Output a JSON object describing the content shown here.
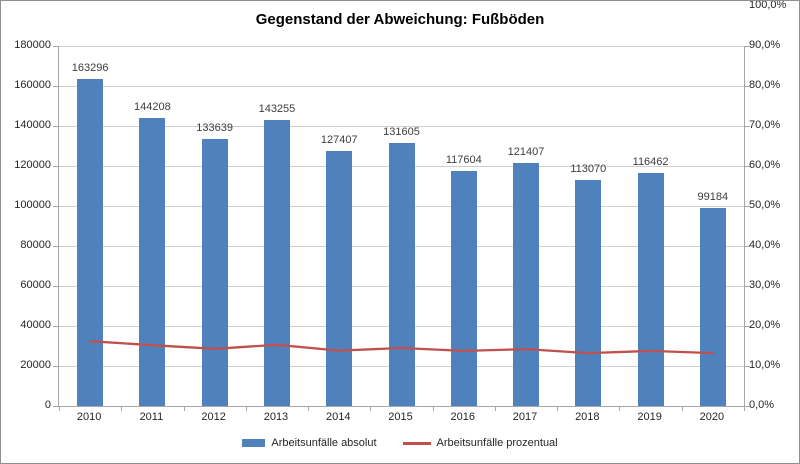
{
  "chart_data": {
    "type": "combo-bar-line",
    "title": "Gegenstand der Abweichung: Fußböden",
    "categories": [
      "2010",
      "2011",
      "2012",
      "2013",
      "2014",
      "2015",
      "2016",
      "2017",
      "2018",
      "2019",
      "2020"
    ],
    "series": [
      {
        "name": "Arbeitsunfälle absolut",
        "type": "bar",
        "axis": "left",
        "color": "#4F81BD",
        "values": [
          163296,
          144208,
          133639,
          143255,
          127407,
          131605,
          117604,
          121407,
          113070,
          116462,
          99184
        ]
      },
      {
        "name": "Arbeitsunfälle prozentual",
        "type": "line",
        "axis": "right",
        "color": "#C0504D",
        "values_percent": [
          18.0,
          16.9,
          15.9,
          17.0,
          15.4,
          16.1,
          15.3,
          15.8,
          14.7,
          15.3,
          14.7
        ]
      }
    ],
    "left_axis": {
      "min": 0,
      "max": 180000,
      "step": 20000,
      "tick_labels": [
        "0",
        "20000",
        "40000",
        "60000",
        "80000",
        "100000",
        "120000",
        "140000",
        "160000",
        "180000"
      ]
    },
    "right_axis": {
      "min": 0,
      "max": 100,
      "step": 10,
      "tick_labels": [
        "0,0%",
        "10,0%",
        "20,0%",
        "30,0%",
        "40,0%",
        "50,0%",
        "60,0%",
        "70,0%",
        "80,0%",
        "90,0%",
        "100,0%"
      ]
    },
    "grid": true,
    "legend_position": "bottom",
    "data_labels_shown_for": "bar series only"
  }
}
